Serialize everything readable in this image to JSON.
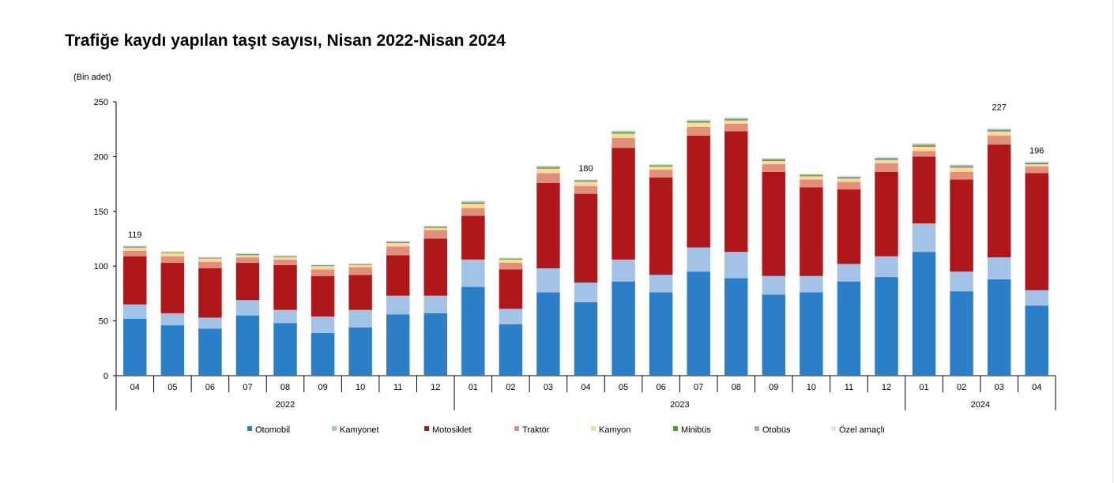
{
  "chart_data": {
    "type": "bar",
    "stacked": true,
    "title": "Trafiğe kaydı yapılan taşıt sayısı, Nisan 2022-Nisan 2024",
    "ylabel": "(Bin adet)",
    "ylim": [
      0,
      250
    ],
    "yticks": [
      0,
      50,
      100,
      150,
      200,
      250
    ],
    "categories": [
      "04",
      "05",
      "06",
      "07",
      "08",
      "09",
      "10",
      "11",
      "12",
      "01",
      "02",
      "03",
      "04",
      "05",
      "06",
      "07",
      "08",
      "09",
      "10",
      "11",
      "12",
      "01",
      "02",
      "03",
      "04"
    ],
    "years": [
      {
        "label": "2022",
        "start": 0,
        "end": 8
      },
      {
        "label": "2023",
        "start": 9,
        "end": 20
      },
      {
        "label": "2024",
        "start": 21,
        "end": 24
      }
    ],
    "legend_position": "bottom",
    "grid": false,
    "series": [
      {
        "name": "Otomobil",
        "color": "#2a7fc8",
        "values": [
          52,
          46,
          43,
          55,
          48,
          39,
          44,
          56,
          57,
          81,
          47,
          76,
          67,
          86,
          76,
          95,
          89,
          74,
          76,
          86,
          90,
          113,
          77,
          88,
          64
        ]
      },
      {
        "name": "Kamyonet",
        "color": "#a3c3e6",
        "values": [
          13,
          11,
          10,
          14,
          12,
          15,
          16,
          17,
          16,
          25,
          14,
          22,
          18,
          20,
          16,
          22,
          24,
          17,
          15,
          16,
          19,
          26,
          18,
          20,
          14
        ]
      },
      {
        "name": "Motosiklet",
        "color": "#b0171b",
        "values": [
          44,
          46,
          45,
          34,
          41,
          37,
          32,
          37,
          52,
          40,
          36,
          78,
          81,
          102,
          89,
          102,
          110,
          95,
          81,
          68,
          77,
          61,
          84,
          103,
          107
        ]
      },
      {
        "name": "Traktör",
        "color": "#e0907a",
        "values": [
          5,
          6,
          6,
          5,
          5,
          6,
          7,
          8,
          8,
          7,
          6,
          9,
          7,
          9,
          7,
          8,
          7,
          7,
          7,
          7,
          8,
          5,
          7,
          8,
          6
        ]
      },
      {
        "name": "Kamyon",
        "color": "#fcd89a",
        "values": [
          3,
          3,
          3,
          2,
          2,
          3,
          2,
          3,
          2,
          4,
          3,
          4,
          4,
          4,
          3,
          4,
          3,
          3,
          3,
          3,
          3,
          4,
          4,
          4,
          2
        ]
      },
      {
        "name": "Minibüs",
        "color": "#4e9a2e",
        "values": [
          0.6,
          0.5,
          0.5,
          0.6,
          0.6,
          0.5,
          0.5,
          0.7,
          0.7,
          1.0,
          0.6,
          1.0,
          0.8,
          1.0,
          0.8,
          1.0,
          1.0,
          1.0,
          0.9,
          0.9,
          1.0,
          1.2,
          1.0,
          1.0,
          0.9
        ]
      },
      {
        "name": "Otobüs",
        "color": "#8fb0c8",
        "values": [
          0.7,
          0.5,
          0.5,
          0.6,
          0.6,
          0.5,
          0.5,
          0.7,
          0.7,
          1.0,
          0.6,
          1.0,
          0.8,
          1.0,
          0.8,
          1.0,
          1.0,
          1.0,
          0.8,
          0.8,
          1.0,
          1.2,
          1.0,
          1.0,
          0.9
        ]
      },
      {
        "name": "Özel amaçlı",
        "color": "#e8e6d6",
        "values": [
          0.7,
          0.6,
          0.6,
          0.8,
          0.8,
          0.8,
          0.7,
          0.8,
          0.8,
          1.0,
          0.8,
          1.0,
          0.9,
          1.0,
          0.9,
          1.0,
          1.0,
          1.0,
          0.9,
          0.9,
          1.0,
          1.1,
          1.0,
          1.0,
          0.8
        ]
      }
    ],
    "data_labels": [
      {
        "index": 0,
        "text": "119"
      },
      {
        "index": 12,
        "text": "180"
      },
      {
        "index": 23,
        "text": "227"
      },
      {
        "index": 24,
        "text": "196"
      }
    ]
  }
}
